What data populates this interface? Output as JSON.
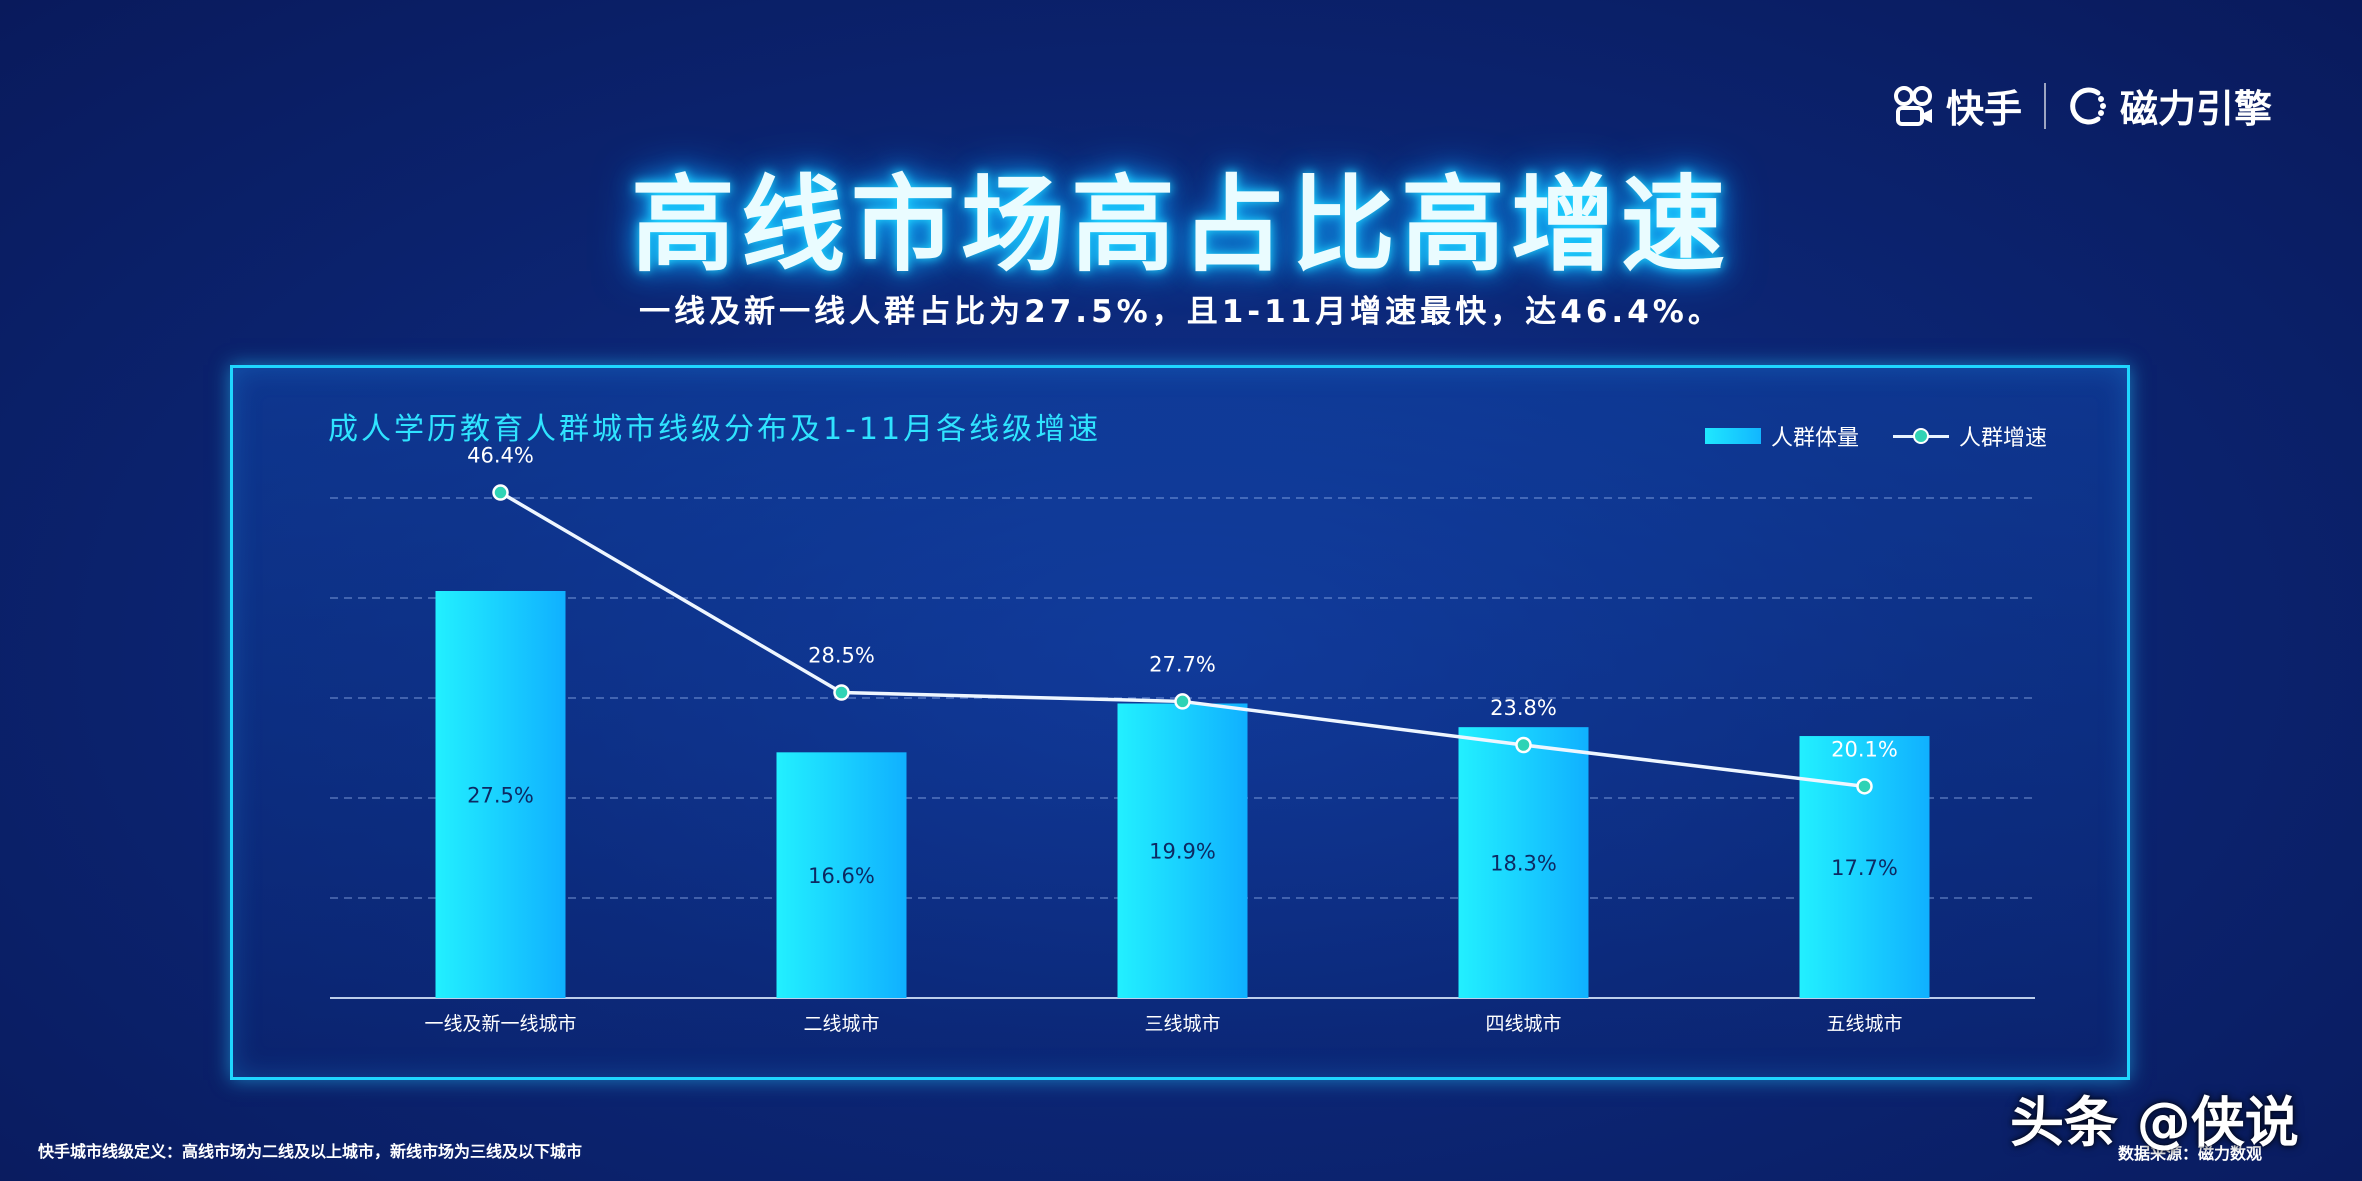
{
  "brand": {
    "logo_left": "快手",
    "logo_right": "磁力引擎"
  },
  "title": "高线市场高占比高增速",
  "subtitle": "一线及新一线人群占比为27.5%，且1-11月增速最快，达46.4%。",
  "chart_data": {
    "type": "bar",
    "title": "成人学历教育人群城市线级分布及1-11月各线级增速",
    "categories": [
      "一线及新一线城市",
      "二线城市",
      "三线城市",
      "四线城市",
      "五线城市"
    ],
    "series": [
      {
        "name": "人群体量",
        "type": "bar",
        "values": [
          27.5,
          16.6,
          19.9,
          18.3,
          17.7
        ],
        "labels": [
          "27.5%",
          "16.6%",
          "19.9%",
          "18.3%",
          "17.7%"
        ]
      },
      {
        "name": "人群增速",
        "type": "line",
        "values": [
          46.4,
          28.5,
          27.7,
          23.8,
          20.1
        ],
        "labels": [
          "46.4%",
          "28.5%",
          "27.7%",
          "23.8%",
          "20.1%"
        ]
      }
    ],
    "legend": "top-right",
    "grid": true,
    "colors": {
      "bar": "#1fe8ff",
      "line": "#e8f4ff",
      "marker": "#2fd3b5",
      "title": "#2fe3ff"
    }
  },
  "footnote": "快手城市线级定义：高线市场为二线及以上城市，新线市场为三线及以下城市",
  "source": "数据来源：磁力数观",
  "watermark": "头条 @侠说"
}
